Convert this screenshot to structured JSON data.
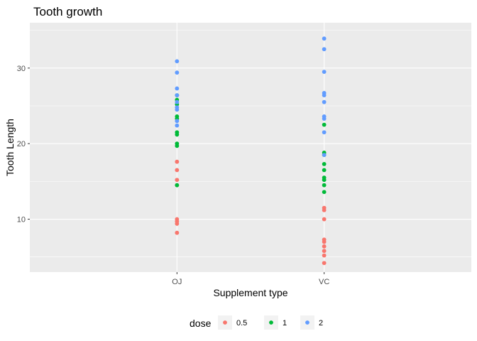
{
  "chart_data": {
    "type": "scatter",
    "title": "Tooth growth",
    "xlabel": "Supplement type",
    "ylabel": "Tooth Length",
    "categories": [
      "OJ",
      "VC"
    ],
    "ylim": [
      3.0,
      36.0
    ],
    "yticks": [
      10,
      20,
      30
    ],
    "grid": true,
    "legend": {
      "title": "dose",
      "placement": "bottom",
      "entries": [
        {
          "label": "0.5",
          "color": "#F8766D"
        },
        {
          "label": "1",
          "color": "#00BA38"
        },
        {
          "label": "2",
          "color": "#619CFF"
        }
      ]
    },
    "series": [
      {
        "name": "0.5",
        "color": "#F8766D",
        "points": [
          {
            "x": "OJ",
            "y": 8.2
          },
          {
            "x": "OJ",
            "y": 9.4
          },
          {
            "x": "OJ",
            "y": 9.7
          },
          {
            "x": "OJ",
            "y": 10.0
          },
          {
            "x": "OJ",
            "y": 14.5
          },
          {
            "x": "OJ",
            "y": 15.2
          },
          {
            "x": "OJ",
            "y": 16.5
          },
          {
            "x": "OJ",
            "y": 17.6
          },
          {
            "x": "VC",
            "y": 4.2
          },
          {
            "x": "VC",
            "y": 5.2
          },
          {
            "x": "VC",
            "y": 5.8
          },
          {
            "x": "VC",
            "y": 6.4
          },
          {
            "x": "VC",
            "y": 7.0
          },
          {
            "x": "VC",
            "y": 7.3
          },
          {
            "x": "VC",
            "y": 10.0
          },
          {
            "x": "VC",
            "y": 11.2
          },
          {
            "x": "VC",
            "y": 11.5
          }
        ]
      },
      {
        "name": "1",
        "color": "#00BA38",
        "points": [
          {
            "x": "OJ",
            "y": 14.5
          },
          {
            "x": "OJ",
            "y": 19.7
          },
          {
            "x": "OJ",
            "y": 20.0
          },
          {
            "x": "OJ",
            "y": 21.2
          },
          {
            "x": "OJ",
            "y": 21.5
          },
          {
            "x": "OJ",
            "y": 23.3
          },
          {
            "x": "OJ",
            "y": 23.6
          },
          {
            "x": "OJ",
            "y": 25.2
          },
          {
            "x": "OJ",
            "y": 25.8
          },
          {
            "x": "OJ",
            "y": 26.4
          },
          {
            "x": "VC",
            "y": 13.6
          },
          {
            "x": "VC",
            "y": 14.5
          },
          {
            "x": "VC",
            "y": 15.2
          },
          {
            "x": "VC",
            "y": 15.5
          },
          {
            "x": "VC",
            "y": 16.5
          },
          {
            "x": "VC",
            "y": 17.3
          },
          {
            "x": "VC",
            "y": 18.5
          },
          {
            "x": "VC",
            "y": 18.8
          },
          {
            "x": "VC",
            "y": 22.5
          }
        ]
      },
      {
        "name": "2",
        "color": "#619CFF",
        "points": [
          {
            "x": "OJ",
            "y": 22.4
          },
          {
            "x": "OJ",
            "y": 23.0
          },
          {
            "x": "OJ",
            "y": 24.5
          },
          {
            "x": "OJ",
            "y": 24.8
          },
          {
            "x": "OJ",
            "y": 25.5
          },
          {
            "x": "OJ",
            "y": 26.4
          },
          {
            "x": "OJ",
            "y": 27.3
          },
          {
            "x": "OJ",
            "y": 29.4
          },
          {
            "x": "OJ",
            "y": 30.9
          },
          {
            "x": "VC",
            "y": 18.5
          },
          {
            "x": "VC",
            "y": 21.5
          },
          {
            "x": "VC",
            "y": 23.3
          },
          {
            "x": "VC",
            "y": 23.6
          },
          {
            "x": "VC",
            "y": 25.5
          },
          {
            "x": "VC",
            "y": 26.4
          },
          {
            "x": "VC",
            "y": 26.7
          },
          {
            "x": "VC",
            "y": 29.5
          },
          {
            "x": "VC",
            "y": 32.5
          },
          {
            "x": "VC",
            "y": 33.9
          }
        ]
      }
    ]
  }
}
